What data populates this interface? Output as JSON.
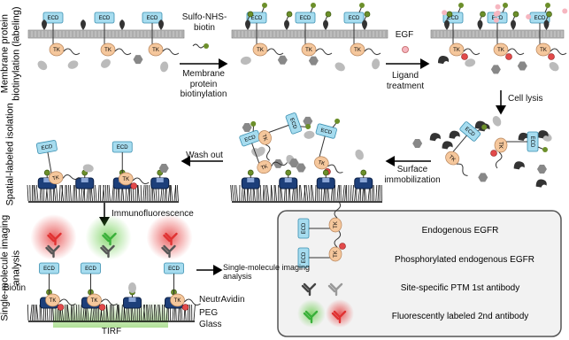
{
  "section_labels": [
    "Membrane protein biotinylation (labeling)",
    "Spatial-labeled isolation",
    "Single-molecule imaging analysis"
  ],
  "steps": {
    "biotinylation": {
      "reagent": "Sulfo-NHS-biotin",
      "label": "Membrane protein biotinylation"
    },
    "ligand": {
      "reagent": "EGF",
      "label": "Ligand treatment"
    },
    "lysis": "Cell lysis",
    "immobilization": "Surface immobilization",
    "wash": "Wash out",
    "immunofluorescence": "Immunofluorescence",
    "imaging": "Single-molecule imaging analysis"
  },
  "icons": {
    "ecd": "ECD",
    "tk": "TK"
  },
  "surface_labels": {
    "biotin": "Biotin",
    "neutravidin": "NeutrAvidin",
    "peg": "PEG",
    "glass": "Glass",
    "tirf": "TIRF"
  },
  "legend": {
    "items": [
      "Endogenous EGFR",
      "Phosphorylated endogenous EGFR",
      "Site-specific PTM 1st antibody",
      "Fluorescently labeled 2nd antibody"
    ]
  }
}
